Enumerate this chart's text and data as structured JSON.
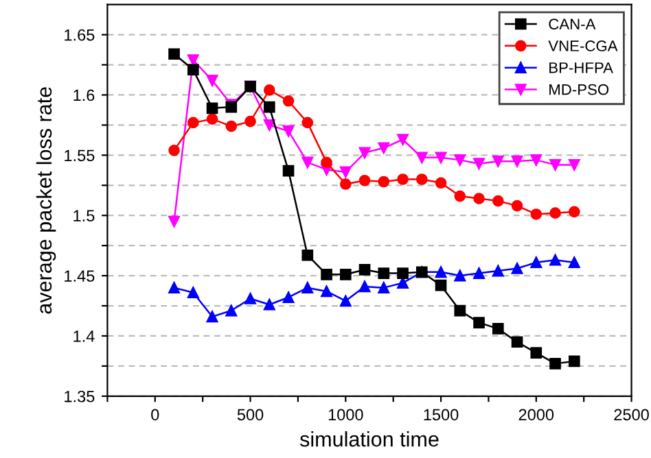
{
  "chart_data": {
    "type": "line",
    "xlabel": "simulation time",
    "ylabel": "average packet loss rate",
    "x": [
      100,
      200,
      300,
      400,
      500,
      600,
      700,
      800,
      900,
      1000,
      1100,
      1200,
      1300,
      1400,
      1500,
      1600,
      1700,
      1800,
      1900,
      2000,
      2100,
      2200
    ],
    "series": [
      {
        "name": "CAN-A",
        "color": "#000000",
        "marker": "square",
        "values": [
          1.634,
          1.621,
          1.589,
          1.59,
          1.607,
          1.59,
          1.537,
          1.467,
          1.451,
          1.451,
          1.455,
          1.452,
          1.452,
          1.453,
          1.442,
          1.421,
          1.411,
          1.406,
          1.395,
          1.386,
          1.377,
          1.379
        ]
      },
      {
        "name": "VNE-CGA",
        "color": "#ff0000",
        "marker": "circle",
        "values": [
          1.554,
          1.577,
          1.58,
          1.574,
          1.578,
          1.604,
          1.595,
          1.577,
          1.544,
          1.526,
          1.529,
          1.528,
          1.53,
          1.53,
          1.527,
          1.516,
          1.514,
          1.512,
          1.508,
          1.501,
          1.502,
          1.503
        ]
      },
      {
        "name": "BP-HFPA",
        "color": "#0000ff",
        "marker": "triangle",
        "values": [
          1.44,
          1.436,
          1.416,
          1.421,
          1.431,
          1.426,
          1.432,
          1.44,
          1.437,
          1.429,
          1.441,
          1.44,
          1.444,
          1.453,
          1.453,
          1.45,
          1.452,
          1.454,
          1.456,
          1.461,
          1.463,
          1.461
        ]
      },
      {
        "name": "MD-PSO",
        "color": "#ff00ff",
        "marker": "triangle_down",
        "values": [
          1.495,
          1.629,
          1.612,
          1.592,
          1.607,
          1.575,
          1.57,
          1.544,
          1.538,
          1.536,
          1.552,
          1.556,
          1.563,
          1.548,
          1.548,
          1.546,
          1.543,
          1.545,
          1.545,
          1.546,
          1.542,
          1.542
        ]
      }
    ],
    "xlim": [
      -250,
      2500
    ],
    "xticks": [
      {
        "value": -250,
        "label": null
      },
      0,
      {
        "value": 250,
        "label": null
      },
      500,
      {
        "value": 750,
        "label": null
      },
      1000,
      {
        "value": 1250,
        "label": null
      },
      1500,
      {
        "value": 1750,
        "label": null
      },
      2000,
      {
        "value": 2250,
        "label": null
      },
      2500
    ],
    "ylim": [
      1.35,
      1.675
    ],
    "yticks": [
      1.35,
      {
        "value": 1.375,
        "label": null
      },
      1.4,
      {
        "value": 1.425,
        "label": null
      },
      1.45,
      {
        "value": 1.475,
        "label": null
      },
      1.5,
      {
        "value": 1.525,
        "label": null
      },
      1.55,
      {
        "value": 1.575,
        "label": null
      },
      1.6,
      {
        "value": 1.625,
        "label": null
      },
      1.65
    ],
    "grid": "y",
    "legend": "top right",
    "line_style": "solid"
  }
}
